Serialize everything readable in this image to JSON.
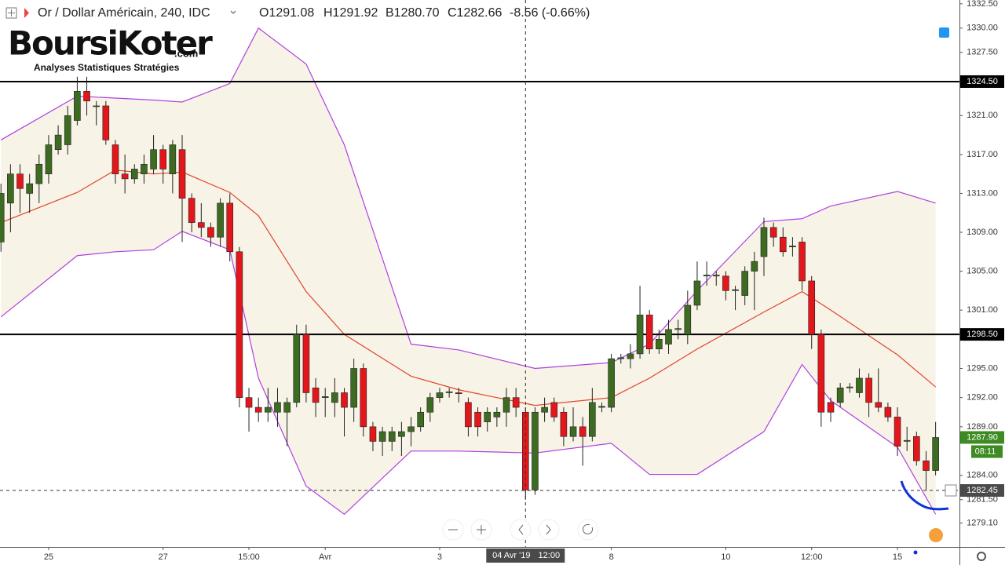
{
  "header": {
    "symbol": "Or / Dollar Américain, 240, IDC",
    "readout": [
      "O1291.08",
      "H1291.92",
      "B1280.70",
      "C1282.66",
      "-8.56 (-0.66%)"
    ]
  },
  "logo": {
    "name": "BoursiKoter",
    "suffix": ".com",
    "tagline": "Analyses Statistiques Stratégies"
  },
  "chart_data": {
    "type": "candlestick",
    "up_color": "#3d6b22",
    "down_color": "#e3161b",
    "xlim": [
      -0.1,
      100.5
    ],
    "ylim": [
      1276.64,
      1332.89
    ],
    "xticks": [
      {
        "value": 5,
        "label": "25"
      },
      {
        "value": 17,
        "label": "27"
      },
      {
        "value": 26,
        "label": "15:00"
      },
      {
        "value": 34,
        "label": "Avr"
      },
      {
        "value": 46,
        "label": "3"
      },
      {
        "value": 64,
        "label": "8"
      },
      {
        "value": 76,
        "label": "10"
      },
      {
        "value": 85,
        "label": "12:00"
      },
      {
        "value": 94,
        "label": "15"
      }
    ],
    "yticks": [
      {
        "value": 1332.5,
        "label": "1332.50"
      },
      {
        "value": 1330,
        "label": "1330.00"
      },
      {
        "value": 1327.5,
        "label": "1327.50"
      },
      {
        "value": 1321,
        "label": "1321.00"
      },
      {
        "value": 1317,
        "label": "1317.00"
      },
      {
        "value": 1313,
        "label": "1313.00"
      },
      {
        "value": 1309,
        "label": "1309.00"
      },
      {
        "value": 1305,
        "label": "1305.00"
      },
      {
        "value": 1301,
        "label": "1301.00"
      },
      {
        "value": 1295,
        "label": "1295.00"
      },
      {
        "value": 1292,
        "label": "1292.00"
      },
      {
        "value": 1289,
        "label": "1289.00"
      },
      {
        "value": 1284,
        "label": "1284.00"
      },
      {
        "value": 1281.5,
        "label": "1281.50"
      },
      {
        "value": 1279.1,
        "label": "1279.10"
      }
    ],
    "ohlc": [
      [
        1308,
        1314,
        1307,
        1313
      ],
      [
        1312,
        1316,
        1309,
        1315
      ],
      [
        1315,
        1316,
        1311,
        1313.5
      ],
      [
        1313,
        1315,
        1311,
        1314
      ],
      [
        1314,
        1317,
        1312,
        1316
      ],
      [
        1315,
        1319,
        1314,
        1318
      ],
      [
        1317.5,
        1320,
        1317,
        1319
      ],
      [
        1318,
        1322,
        1317,
        1321
      ],
      [
        1320.5,
        1325,
        1320,
        1323.5
      ],
      [
        1323.5,
        1325,
        1321,
        1322.5
      ],
      [
        1322,
        1322.5,
        1320,
        1322
      ],
      [
        1322,
        1322.5,
        1318,
        1318.5
      ],
      [
        1318,
        1318.5,
        1314,
        1315
      ],
      [
        1315,
        1317,
        1313,
        1314.5
      ],
      [
        1314.5,
        1316,
        1314,
        1315.5
      ],
      [
        1315,
        1317,
        1314,
        1316
      ],
      [
        1315.5,
        1319,
        1315,
        1317.5
      ],
      [
        1317.5,
        1318,
        1314,
        1315.5
      ],
      [
        1315,
        1318.5,
        1313,
        1318
      ],
      [
        1317.5,
        1319,
        1308,
        1312.5
      ],
      [
        1312.5,
        1313,
        1309,
        1310
      ],
      [
        1310,
        1312,
        1308.5,
        1309.5
      ],
      [
        1309.5,
        1310,
        1307.5,
        1308.5
      ],
      [
        1308.5,
        1312.5,
        1307.5,
        1312
      ],
      [
        1312,
        1313,
        1306,
        1307
      ],
      [
        1307,
        1307.5,
        1291,
        1292
      ],
      [
        1292,
        1293,
        1288.5,
        1291
      ],
      [
        1291,
        1292,
        1289.5,
        1290.5
      ],
      [
        1290.5,
        1293,
        1289.5,
        1291
      ],
      [
        1290.5,
        1293,
        1289,
        1291.5
      ],
      [
        1290.5,
        1292,
        1287,
        1291.5
      ],
      [
        1291.5,
        1299.5,
        1291,
        1298.5
      ],
      [
        1298.5,
        1299.5,
        1291.5,
        1292.5
      ],
      [
        1293,
        1294,
        1290,
        1291.5
      ],
      [
        1292,
        1293,
        1290,
        1292.1
      ],
      [
        1291.5,
        1294,
        1290,
        1292.5
      ],
      [
        1292.5,
        1293,
        1288,
        1291
      ],
      [
        1291,
        1296,
        1289.5,
        1295
      ],
      [
        1295,
        1295.5,
        1288,
        1289
      ],
      [
        1289,
        1289.5,
        1286.5,
        1287.5
      ],
      [
        1287.5,
        1289,
        1286,
        1288.5
      ],
      [
        1287.5,
        1289,
        1286.5,
        1288.5
      ],
      [
        1288,
        1289.5,
        1286,
        1288.5
      ],
      [
        1288.5,
        1290,
        1287,
        1289
      ],
      [
        1289,
        1291,
        1288.5,
        1290.5
      ],
      [
        1290.5,
        1292.5,
        1289.5,
        1292
      ],
      [
        1292,
        1293,
        1291.5,
        1292.5
      ],
      [
        1292.5,
        1293,
        1292,
        1292.6
      ],
      [
        1292.5,
        1293,
        1291.5,
        1292.4
      ],
      [
        1291.5,
        1292,
        1288,
        1289
      ],
      [
        1290.5,
        1291,
        1288,
        1289
      ],
      [
        1289.5,
        1291,
        1288.5,
        1290.5
      ],
      [
        1290,
        1291,
        1289,
        1290.5
      ],
      [
        1290.5,
        1293,
        1289,
        1292
      ],
      [
        1292,
        1293,
        1290,
        1291
      ],
      [
        1290.5,
        1291,
        1281.5,
        1282.5
      ],
      [
        1282.5,
        1291,
        1282,
        1290.5
      ],
      [
        1290.5,
        1292,
        1289.5,
        1291
      ],
      [
        1291.5,
        1292,
        1289.5,
        1290
      ],
      [
        1290.5,
        1291,
        1287,
        1288
      ],
      [
        1288,
        1291,
        1287.5,
        1289
      ],
      [
        1289,
        1290,
        1285,
        1288
      ],
      [
        1288,
        1293,
        1287.5,
        1291.5
      ],
      [
        1291,
        1291.5,
        1290.5,
        1291.1
      ],
      [
        1291,
        1296.5,
        1290.5,
        1296
      ],
      [
        1296,
        1296.5,
        1295.5,
        1296.1
      ],
      [
        1296,
        1297.5,
        1295,
        1296.5
      ],
      [
        1296.5,
        1303.5,
        1296,
        1300.5
      ],
      [
        1300.5,
        1301,
        1296.5,
        1297
      ],
      [
        1297,
        1299,
        1296.5,
        1298
      ],
      [
        1297.5,
        1300,
        1296.5,
        1299
      ],
      [
        1299,
        1300,
        1298,
        1299.1
      ],
      [
        1298.5,
        1303,
        1297.5,
        1301.5
      ],
      [
        1301.5,
        1306,
        1301,
        1304
      ],
      [
        1304.5,
        1306,
        1303.5,
        1304.6
      ],
      [
        1304.5,
        1305,
        1303.5,
        1304.6
      ],
      [
        1304.5,
        1305,
        1302,
        1303
      ],
      [
        1303,
        1303.5,
        1301,
        1303.1
      ],
      [
        1302.5,
        1305.5,
        1301.5,
        1305
      ],
      [
        1305,
        1307,
        1301,
        1306
      ],
      [
        1306.5,
        1310.5,
        1304.5,
        1309.5
      ],
      [
        1309.5,
        1310,
        1307.5,
        1308.5
      ],
      [
        1308.5,
        1309.5,
        1306.5,
        1307
      ],
      [
        1307.5,
        1308.5,
        1306.5,
        1307.6
      ],
      [
        1308,
        1308.5,
        1303,
        1304
      ],
      [
        1304,
        1304.5,
        1297,
        1298.5
      ],
      [
        1298.5,
        1299,
        1289,
        1290.5
      ],
      [
        1291.5,
        1292,
        1289.5,
        1290.5
      ],
      [
        1291.5,
        1293.5,
        1291,
        1293
      ],
      [
        1293,
        1293.5,
        1292.5,
        1293.1
      ],
      [
        1292.5,
        1295,
        1292,
        1294
      ],
      [
        1294,
        1294.5,
        1290,
        1291.5
      ],
      [
        1291.5,
        1295,
        1290.5,
        1291
      ],
      [
        1291,
        1291.5,
        1289.5,
        1290
      ],
      [
        1290,
        1291,
        1286,
        1287
      ],
      [
        1287.5,
        1289,
        1286.5,
        1287.6
      ],
      [
        1288,
        1288.5,
        1285,
        1285.5
      ],
      [
        1285.5,
        1286.5,
        1282.5,
        1284.5
      ],
      [
        1284.5,
        1289.5,
        1284,
        1287.9
      ]
    ],
    "band_x": [
      0,
      8,
      12,
      16,
      19,
      24,
      27,
      32,
      36,
      43,
      48,
      56,
      64,
      68,
      73,
      80,
      84,
      87,
      94,
      98
    ],
    "bands": [
      {
        "color": "#b040e0",
        "values": [
          1318.5,
          1323,
          1322.8,
          1322.6,
          1322.4,
          1324.3,
          1330,
          1326.3,
          1318,
          1297.5,
          1296.9,
          1295,
          1295.6,
          1297.5,
          1303,
          1310.1,
          1310.4,
          1311.7,
          1313.2,
          1312
        ]
      },
      {
        "color": "#e0452b",
        "values": [
          1310,
          1313.1,
          1315.4,
          1315,
          1315.2,
          1313.1,
          1310.7,
          1302.9,
          1298.5,
          1294.2,
          1292.8,
          1291.2,
          1292,
          1294,
          1297,
          1300.8,
          1302.9,
          1301,
          1296.4,
          1293.1
        ]
      },
      {
        "color": "#b040e0",
        "values": [
          1300.3,
          1306.6,
          1307,
          1307.2,
          1309.1,
          1307.2,
          1294,
          1282.9,
          1280,
          1286.5,
          1286.5,
          1286.3,
          1287.3,
          1284.1,
          1284.1,
          1288.5,
          1295.4,
          1291.7,
          1286.9,
          1280
        ]
      }
    ],
    "band_fill": "#f7f3e6",
    "price_lines": [
      {
        "value": 1324.5,
        "label": "1324.50"
      },
      {
        "value": 1298.5,
        "label": "1298.50"
      }
    ],
    "last_price": {
      "value": 1287.9,
      "label": "1287.90",
      "countdown": "08:11",
      "color": "#3d8b22"
    },
    "crosshair": {
      "x": 55,
      "y": 1282.45,
      "y_label": "1282.45",
      "x_label": "04 Avr '19",
      "time_label": "12:00"
    }
  }
}
